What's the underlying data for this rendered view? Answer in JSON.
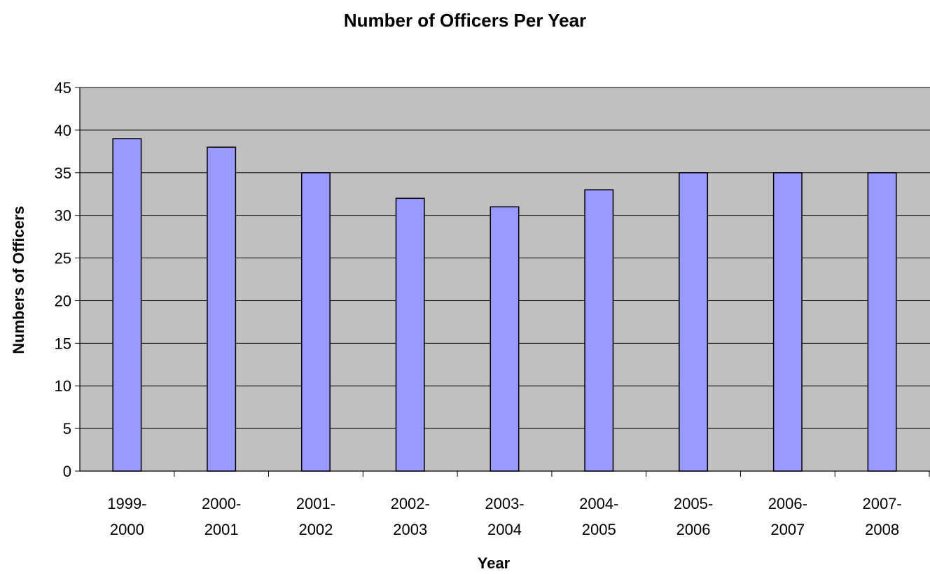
{
  "chart_data": {
    "type": "bar",
    "title": "Number of Officers Per Year",
    "xlabel": "Year",
    "ylabel": "Numbers of Officers",
    "categories": [
      [
        "1999-",
        "2000"
      ],
      [
        "2000-",
        "2001"
      ],
      [
        "2001-",
        "2002"
      ],
      [
        "2002-",
        "2003"
      ],
      [
        "2003-",
        "2004"
      ],
      [
        "2004-",
        "2005"
      ],
      [
        "2005-",
        "2006"
      ],
      [
        "2006-",
        "2007"
      ],
      [
        "2007-",
        "2008"
      ]
    ],
    "values": [
      39,
      38,
      35,
      32,
      31,
      33,
      35,
      35,
      35
    ],
    "ylim": [
      0,
      45
    ],
    "yticks": [
      "0",
      "5",
      "10",
      "15",
      "20",
      "25",
      "30",
      "35",
      "40",
      "45"
    ],
    "grid": true,
    "legend": "none",
    "colors": {
      "plot_background": "#c0c0c0",
      "bar_fill": "#9999ff",
      "bar_stroke": "#000000",
      "gridline": "#000000"
    }
  }
}
